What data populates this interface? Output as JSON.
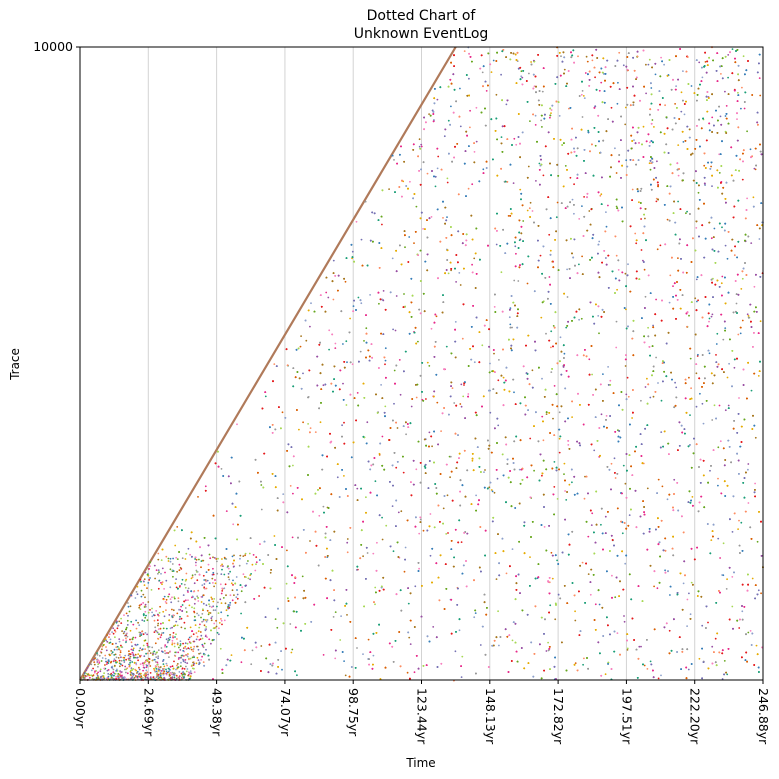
{
  "chart_data": {
    "type": "scatter",
    "title_lines": [
      "Dotted Chart of",
      "Unknown EventLog"
    ],
    "xlabel": "Time",
    "ylabel": "Trace",
    "x_unit": "yr",
    "xlim": [
      0,
      246.88
    ],
    "ylim": [
      0,
      10000
    ],
    "y_tick_labels": [
      "10000"
    ],
    "x_ticks": [
      0.0,
      24.69,
      49.38,
      74.07,
      98.75,
      123.44,
      148.13,
      172.82,
      197.51,
      222.2,
      246.88
    ],
    "x_tick_labels": [
      "0.00yr",
      "24.69yr",
      "49.38yr",
      "74.07yr",
      "98.75yr",
      "123.44yr",
      "148.13yr",
      "172.82yr",
      "197.51yr",
      "222.20yr",
      "246.88yr"
    ],
    "grid": "vertical",
    "legend": "none",
    "series_colors": [
      "#e7298a",
      "#d95f02",
      "#1b9e77",
      "#7570b3",
      "#66a61e",
      "#e6ab02",
      "#a6761d",
      "#e41a1c",
      "#377eb8",
      "#984ea3",
      "#f781bf",
      "#999999",
      "#a6d854",
      "#fc8d62",
      "#8da0cb"
    ],
    "trace_start_line": {
      "x": [
        0,
        135.8
      ],
      "y": [
        0,
        10000
      ],
      "color": "#b07a5a"
    }
  }
}
